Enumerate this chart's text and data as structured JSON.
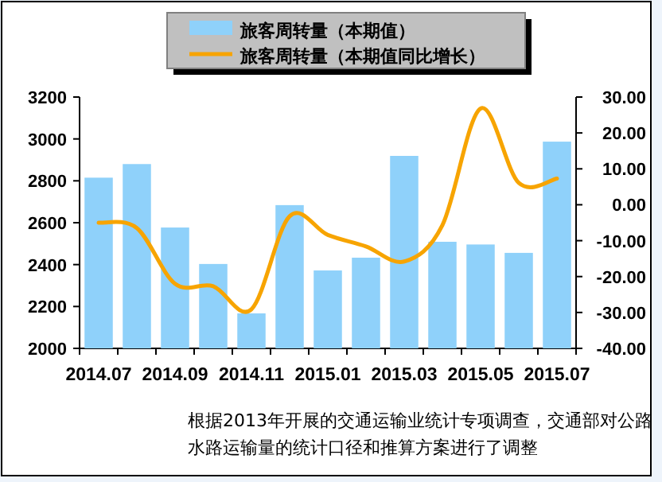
{
  "chart_data": {
    "type": "bar",
    "categories": [
      "2014.07",
      null,
      "2014.09",
      null,
      "2014.11",
      null,
      "2015.01",
      null,
      "2015.03",
      null,
      "2015.05",
      null,
      "2015.07"
    ],
    "series": [
      {
        "name": "旅客周转量（本期值）",
        "color": "#8fd1fa",
        "values": [
          2815,
          2880,
          2577,
          2403,
          2167,
          2684,
          2372,
          2433,
          2919,
          2509,
          2496,
          2456,
          2987
        ]
      },
      {
        "name": "旅客周转量（本期值同比增长）",
        "type": "line",
        "axis": "y2",
        "color": "#f7a400",
        "values": [
          -5.0,
          -6.5,
          -22.0,
          -22.7,
          -29.1,
          -3.2,
          -8.4,
          -11.6,
          -15.8,
          -5.7,
          26.8,
          6.1,
          7.3
        ]
      }
    ],
    "ylim": [
      2000,
      3200
    ],
    "yticks": [
      2000,
      2200,
      2400,
      2600,
      2800,
      3000,
      3200
    ],
    "y2lim": [
      -40,
      30
    ],
    "y2ticks": [
      {
        "value": -40,
        "label": "-40.00"
      },
      {
        "value": -30,
        "label": "-30.00"
      },
      {
        "value": -20,
        "label": "-20.00"
      },
      {
        "value": -10,
        "label": "-10.00"
      },
      {
        "value": 0,
        "label": "0.00"
      },
      {
        "value": 10,
        "label": "10.00"
      },
      {
        "value": 20,
        "label": "20.00"
      },
      {
        "value": 30,
        "label": "30.00"
      }
    ],
    "legend": "top",
    "grid": false,
    "annotations": [
      "根据2013年开展的交通运输业统计专项调查，交通部对公路水路运输量的统计口径和推算方案进行了调整"
    ]
  }
}
